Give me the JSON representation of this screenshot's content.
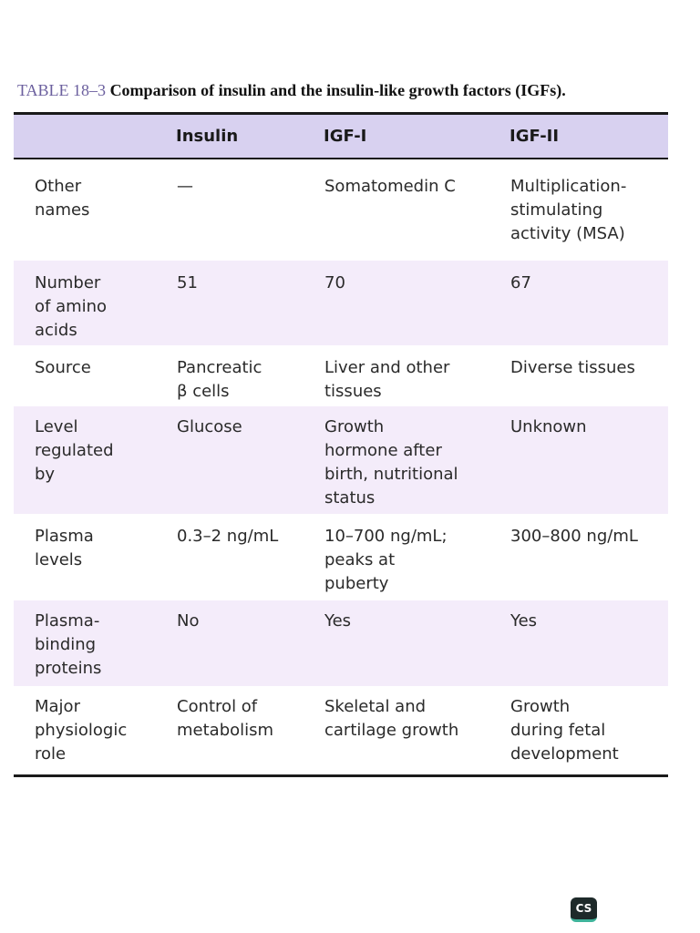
{
  "caption": {
    "label": "TABLE 18–3",
    "text": " Comparison of insulin and the insulin-like growth factors (IGFs)."
  },
  "table": {
    "headers": [
      "",
      "Insulin",
      "IGF-I",
      "IGF-II"
    ],
    "rows": [
      [
        "Other\nnames",
        "—",
        "Somatomedin C",
        "Multiplication-\nstimulating\nactivity (MSA)"
      ],
      [
        "Number\nof amino\nacids",
        "51",
        "70",
        "67"
      ],
      [
        "Source",
        "Pancreatic\nβ cells",
        "Liver and other\ntissues",
        "Diverse tissues"
      ],
      [
        "Level\nregulated\nby",
        "Glucose",
        "Growth\nhormone after\nbirth, nutritional\nstatus",
        "Unknown"
      ],
      [
        "Plasma\nlevels",
        "0.3–2 ng/mL",
        "10–700 ng/mL;\npeaks at\npuberty",
        "300–800 ng/mL"
      ],
      [
        "Plasma-\nbinding\nproteins",
        "No",
        "Yes",
        "Yes"
      ],
      [
        "Major\nphysiologic\nrole",
        "Control of\nmetabolism",
        "Skeletal and\ncartilage growth",
        "Growth\nduring fetal\ndevelopment"
      ]
    ]
  },
  "watermark": {
    "logo_text": "CS"
  },
  "colors": {
    "header_bg": "#d8d1f0",
    "shade_row_bg": "#f4ecfa",
    "caption_label": "#6b5f9e"
  }
}
